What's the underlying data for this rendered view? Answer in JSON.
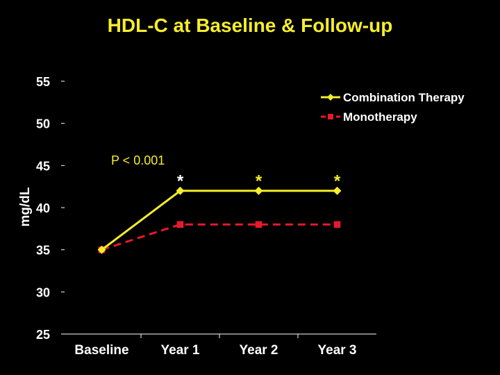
{
  "chart_data": {
    "type": "line",
    "title": "HDL-C at Baseline & Follow-up",
    "xlabel": "",
    "ylabel": "mg/dL",
    "categories": [
      "Baseline",
      "Year 1",
      "Year 2",
      "Year 3"
    ],
    "ylim": [
      25,
      55
    ],
    "yticks": [
      25,
      30,
      35,
      40,
      45,
      50,
      55
    ],
    "grid": false,
    "legend_position": "top-right",
    "series": [
      {
        "name": "Combination Therapy",
        "values": [
          35,
          42,
          42,
          42
        ],
        "color": "#f5ee2a",
        "style": "solid",
        "marker": "diamond"
      },
      {
        "name": "Monotherapy",
        "values": [
          35,
          38,
          38,
          38
        ],
        "color": "#e8192c",
        "style": "dashed",
        "marker": "square"
      }
    ],
    "annotations": [
      {
        "text": "P < 0.001",
        "color": "#f5ee2a"
      },
      {
        "text": "*",
        "category": "Year 1",
        "color": "#ffffff"
      },
      {
        "text": "*",
        "category": "Year 2",
        "color": "#f5ee2a"
      },
      {
        "text": "*",
        "category": "Year 3",
        "color": "#f5ee2a"
      }
    ],
    "colors": {
      "background": "#000000",
      "axis": "#ffffff",
      "title": "#f5ee2a"
    }
  }
}
